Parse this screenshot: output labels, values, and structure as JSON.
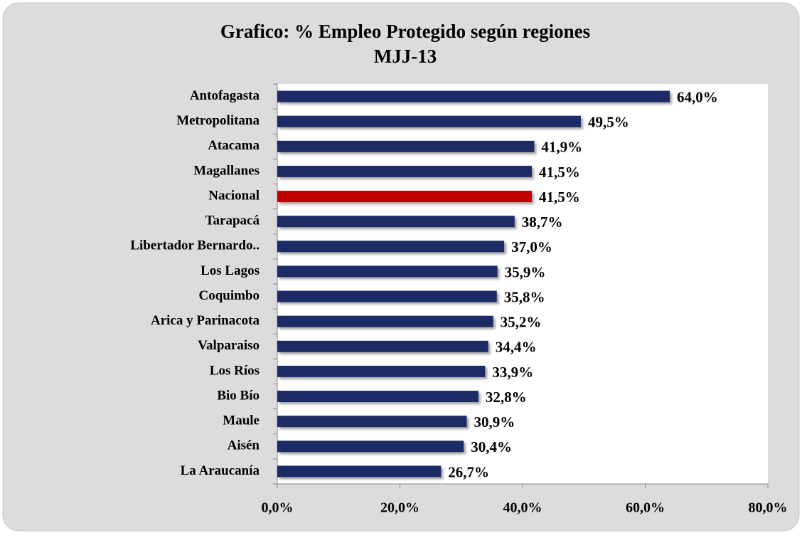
{
  "chart_data": {
    "type": "barh",
    "title": "Grafico: % Empleo Protegido según regiones",
    "subtitle": "MJJ-13",
    "categories": [
      "Antofagasta",
      "Metropolitana",
      "Atacama",
      "Magallanes",
      "Nacional",
      "Tarapacá",
      "Libertador Bernardo..",
      "Los Lagos",
      "Coquimbo",
      "Arica y Parinacota",
      "Valparaiso",
      "Los Ríos",
      "Bio Bío",
      "Maule",
      "Aisén",
      "La Araucanía"
    ],
    "values": [
      64.0,
      49.5,
      41.9,
      41.5,
      41.5,
      38.7,
      37.0,
      35.9,
      35.8,
      35.2,
      34.4,
      33.9,
      32.8,
      30.9,
      30.4,
      26.7
    ],
    "value_labels": [
      "64,0%",
      "49,5%",
      "41,9%",
      "41,5%",
      "41,5%",
      "38,7%",
      "37,0%",
      "35,9%",
      "35,8%",
      "35,2%",
      "34,4%",
      "33,9%",
      "32,8%",
      "30,9%",
      "30,4%",
      "26,7%"
    ],
    "colors": [
      "#1b2a66",
      "#1b2a66",
      "#1b2a66",
      "#1b2a66",
      "#c00000",
      "#1b2a66",
      "#1b2a66",
      "#1b2a66",
      "#1b2a66",
      "#1b2a66",
      "#1b2a66",
      "#1b2a66",
      "#1b2a66",
      "#1b2a66",
      "#1b2a66",
      "#1b2a66"
    ],
    "xlim": [
      0,
      80
    ],
    "xticks": [
      {
        "value": 0,
        "label": "0,0%"
      },
      {
        "value": 20,
        "label": "20,0%"
      },
      {
        "value": 40,
        "label": "40,0%"
      },
      {
        "value": 60,
        "label": "60,0%"
      },
      {
        "value": 80,
        "label": "80,0%"
      }
    ],
    "grid": false
  }
}
